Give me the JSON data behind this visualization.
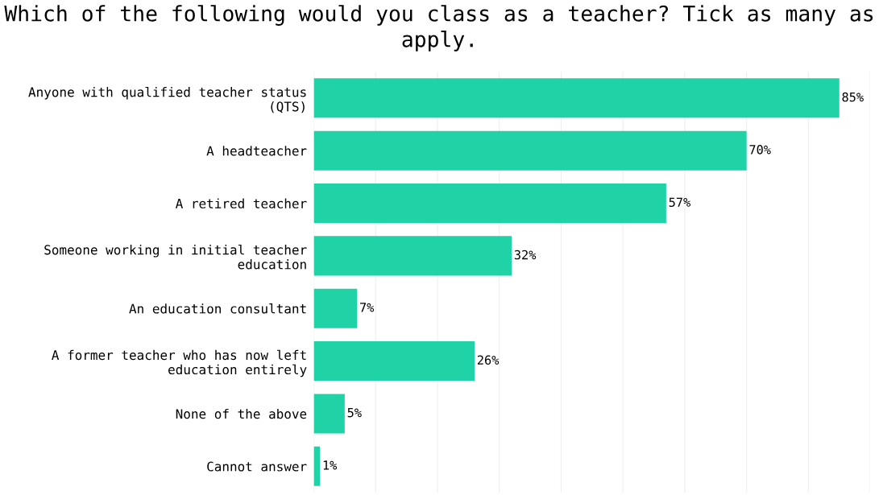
{
  "chart_data": {
    "type": "bar",
    "orientation": "horizontal",
    "title": "Which of the following would you class as a teacher? Tick as many as apply.",
    "categories": [
      "Anyone with qualified teacher status (QTS)",
      "A headteacher",
      "A retired teacher",
      "Someone working in initial teacher education",
      "An education consultant",
      "A former teacher who has now left education entirely",
      "None of the above",
      "Cannot answer"
    ],
    "values": [
      85,
      70,
      57,
      32,
      7,
      26,
      5,
      1
    ],
    "value_labels": [
      "85%",
      "70%",
      "57%",
      "32%",
      "7%",
      "26%",
      "5%",
      "1%"
    ],
    "color": "#1fd3a6",
    "xticks": [
      {
        "value": 0,
        "label": null
      },
      {
        "value": 10,
        "label": null
      },
      {
        "value": 20,
        "label": null
      },
      {
        "value": 30,
        "label": null
      },
      {
        "value": 40,
        "label": null
      },
      {
        "value": 50,
        "label": null
      },
      {
        "value": 60,
        "label": null
      },
      {
        "value": 70,
        "label": null
      },
      {
        "value": 80,
        "label": null
      },
      {
        "value": 90,
        "label": null
      }
    ],
    "grid": "x",
    "tick_labels": "y"
  }
}
